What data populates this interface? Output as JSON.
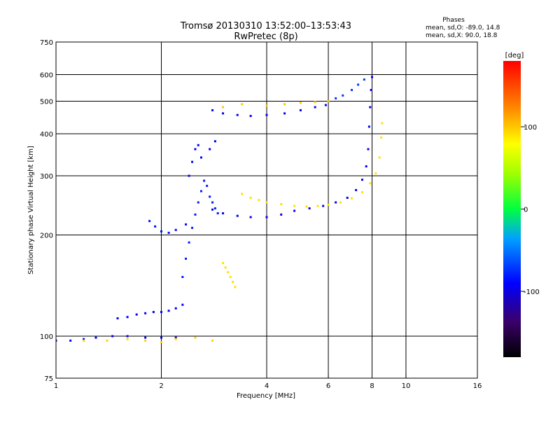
{
  "chart_data": {
    "type": "scatter",
    "title": "Tromsø 20130310 13:52:00–13:53:43",
    "subtitle": "RwPretec (8p)",
    "legend_title": "Phases",
    "legend_line1": "mean, sd,O: -89.0, 14.8",
    "legend_line2": "mean, sd,X:  90.0, 18.8",
    "xlabel": "Frequency [MHz]",
    "ylabel": "Stationary phase Virtual Height [km]",
    "xscale": "log",
    "yscale": "log",
    "xlim": [
      1,
      16
    ],
    "ylim": [
      75,
      750
    ],
    "xticks": [
      1,
      2,
      4,
      6,
      8,
      10,
      16
    ],
    "xtick_labels": [
      "1",
      "2",
      "4",
      "6",
      "8",
      "10",
      "16"
    ],
    "xgrid": [
      2,
      4,
      6,
      8,
      10
    ],
    "yticks": [
      75,
      100,
      200,
      300,
      400,
      500,
      600,
      750
    ],
    "ytick_labels": [
      "75",
      "100",
      "200",
      "300",
      "400",
      "500",
      "600",
      "750"
    ],
    "ygrid": [
      100,
      200,
      300,
      400,
      500,
      600
    ],
    "grid": true,
    "colorbar": {
      "label": "[deg]",
      "min": -180,
      "max": 180,
      "ticks": [
        100,
        0,
        -100
      ],
      "tick_labels": [
        "100",
        "0",
        "-100"
      ]
    },
    "colors": {
      "o_mode": "#1a3fe6",
      "o_mode_low": "#1e6cf0",
      "x_mode": "#d8e81c",
      "x_mode_orange": "#f0a020"
    },
    "series": [
      {
        "values": [
          [
            1.0,
            97
          ],
          [
            1.1,
            97
          ],
          [
            1.2,
            98
          ],
          [
            1.3,
            99
          ],
          [
            1.45,
            100
          ],
          [
            1.6,
            100
          ],
          [
            1.8,
            99
          ],
          [
            2.0,
            99
          ],
          [
            2.2,
            99
          ]
        ],
        "phase": -90
      },
      {
        "values": [
          [
            1.5,
            113
          ],
          [
            1.6,
            114
          ],
          [
            1.7,
            116
          ],
          [
            1.8,
            117
          ],
          [
            1.9,
            118
          ],
          [
            2.0,
            118
          ],
          [
            2.1,
            119
          ],
          [
            2.2,
            121
          ],
          [
            2.3,
            124
          ]
        ],
        "phase": -90
      },
      {
        "values": [
          [
            1.85,
            220
          ],
          [
            1.92,
            212
          ],
          [
            2.0,
            205
          ],
          [
            2.1,
            203
          ],
          [
            2.2,
            207
          ],
          [
            2.35,
            215
          ]
        ],
        "phase": -85
      },
      {
        "values": [
          [
            2.3,
            150
          ],
          [
            2.35,
            170
          ],
          [
            2.4,
            190
          ],
          [
            2.45,
            210
          ],
          [
            2.5,
            230
          ],
          [
            2.55,
            250
          ],
          [
            2.6,
            270
          ],
          [
            2.65,
            290
          ],
          [
            2.7,
            280
          ],
          [
            2.75,
            260
          ],
          [
            2.8,
            250
          ],
          [
            2.85,
            240
          ],
          [
            2.9,
            232
          ]
        ],
        "phase": -80
      },
      {
        "values": [
          [
            2.4,
            300
          ],
          [
            2.45,
            330
          ],
          [
            2.5,
            360
          ],
          [
            2.55,
            370
          ],
          [
            2.6,
            340
          ],
          [
            2.75,
            360
          ],
          [
            2.85,
            380
          ]
        ],
        "phase": -90
      },
      {
        "values": [
          [
            2.8,
            238
          ],
          [
            3.0,
            232
          ],
          [
            3.3,
            228
          ],
          [
            3.6,
            226
          ],
          [
            4.0,
            226
          ],
          [
            4.4,
            230
          ],
          [
            4.8,
            236
          ],
          [
            5.3,
            240
          ],
          [
            5.8,
            244
          ],
          [
            6.3,
            250
          ],
          [
            6.8,
            258
          ],
          [
            7.2,
            272
          ],
          [
            7.5,
            292
          ],
          [
            7.7,
            320
          ],
          [
            7.8,
            360
          ],
          [
            7.85,
            420
          ],
          [
            7.9,
            480
          ],
          [
            7.95,
            540
          ],
          [
            8.0,
            590
          ]
        ],
        "phase": -95
      },
      {
        "values": [
          [
            3.4,
            265
          ],
          [
            3.6,
            258
          ],
          [
            3.8,
            254
          ],
          [
            4.0,
            250
          ],
          [
            4.4,
            247
          ],
          [
            4.8,
            244
          ],
          [
            5.2,
            243
          ],
          [
            5.6,
            244
          ],
          [
            6.0,
            246
          ],
          [
            6.5,
            250
          ],
          [
            7.0,
            257
          ],
          [
            7.5,
            268
          ],
          [
            7.9,
            285
          ],
          [
            8.2,
            305
          ],
          [
            8.4,
            340
          ],
          [
            8.5,
            390
          ],
          [
            8.55,
            430
          ]
        ],
        "phase": 90
      },
      {
        "values": [
          [
            2.8,
            470
          ],
          [
            3.0,
            460
          ],
          [
            3.3,
            455
          ],
          [
            3.6,
            452
          ],
          [
            4.0,
            455
          ],
          [
            4.5,
            460
          ],
          [
            5.0,
            470
          ],
          [
            5.5,
            480
          ],
          [
            5.9,
            487
          ]
        ],
        "phase": -95
      },
      {
        "values": [
          [
            3.0,
            480
          ],
          [
            3.4,
            490
          ],
          [
            4.0,
            485
          ],
          [
            4.5,
            490
          ],
          [
            5.0,
            495
          ],
          [
            5.5,
            497
          ],
          [
            6.0,
            500
          ]
        ],
        "phase": 100
      },
      {
        "values": [
          [
            6.3,
            510
          ],
          [
            6.6,
            520
          ],
          [
            7.0,
            540
          ],
          [
            7.3,
            560
          ],
          [
            7.6,
            580
          ]
        ],
        "phase": -70
      },
      {
        "values": [
          [
            3.0,
            165
          ],
          [
            3.05,
            160
          ],
          [
            3.1,
            155
          ],
          [
            3.15,
            150
          ],
          [
            3.2,
            145
          ],
          [
            3.25,
            140
          ]
        ],
        "phase": 90
      },
      {
        "values": [
          [
            1.2,
            97
          ],
          [
            1.4,
            97
          ],
          [
            1.6,
            98
          ],
          [
            1.8,
            97
          ],
          [
            2.0,
            96
          ],
          [
            2.2,
            98
          ],
          [
            2.5,
            99
          ],
          [
            2.8,
            97
          ]
        ],
        "phase": 95
      }
    ]
  }
}
